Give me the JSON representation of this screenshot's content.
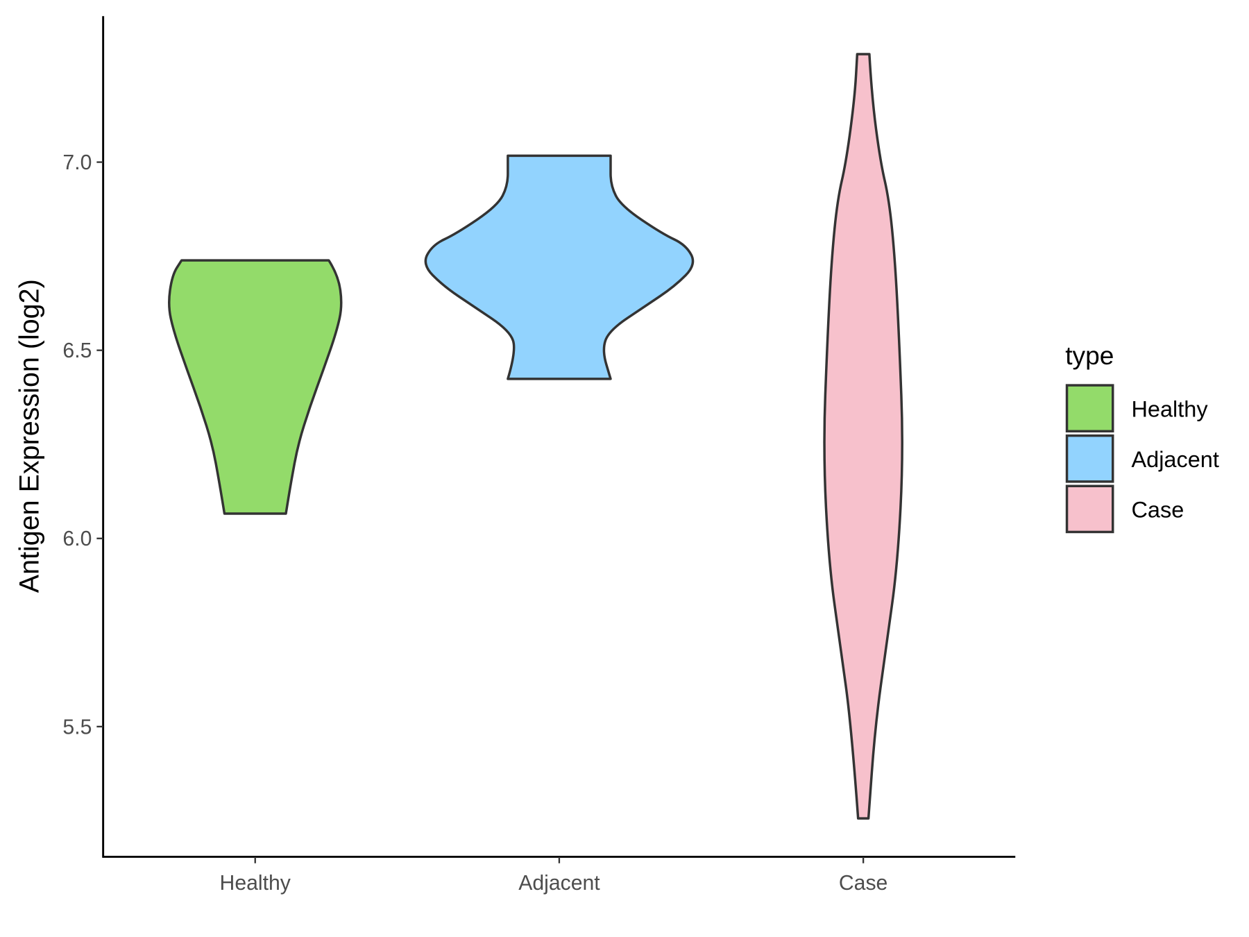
{
  "chart_data": {
    "type": "violin",
    "y_label": "Antigen Expression (log2)",
    "categories": [
      "Healthy",
      "Adjacent",
      "Case"
    ],
    "ylim": [
      5.154,
      7.388
    ],
    "yticks": [
      5.5,
      {
        "value": 6,
        "label": "6.0"
      },
      6.5,
      {
        "value": 7,
        "label": "7.0"
      }
    ],
    "legend_title": "type",
    "legend_position": "right",
    "series": [
      {
        "name": "Healthy",
        "color": "#93db6a",
        "y": [
          6.066,
          6.15,
          6.25,
          6.35,
          6.45,
          6.55,
          6.62,
          6.7,
          6.739
        ],
        "widths": [
          0.101,
          0.118,
          0.141,
          0.18,
          0.225,
          0.268,
          0.287,
          0.273,
          0.242
        ]
      },
      {
        "name": "Adjacent",
        "color": "#92d3fe",
        "y": [
          6.424,
          6.5,
          6.552,
          6.617,
          6.67,
          6.728,
          6.78,
          6.81,
          6.884,
          6.938,
          7.0,
          7.017
        ],
        "widths": [
          0.169,
          0.141,
          0.163,
          0.282,
          0.38,
          0.451,
          0.417,
          0.338,
          0.203,
          0.169,
          0.169,
          0.169
        ]
      },
      {
        "name": "Case",
        "color": "#f7c1cc",
        "y": [
          5.256,
          5.5,
          5.717,
          5.931,
          6.231,
          6.531,
          6.745,
          6.9,
          7.002,
          7.174,
          7.287
        ],
        "widths": [
          0.017,
          0.039,
          0.076,
          0.113,
          0.132,
          0.118,
          0.104,
          0.085,
          0.056,
          0.028,
          0.02
        ]
      }
    ]
  }
}
